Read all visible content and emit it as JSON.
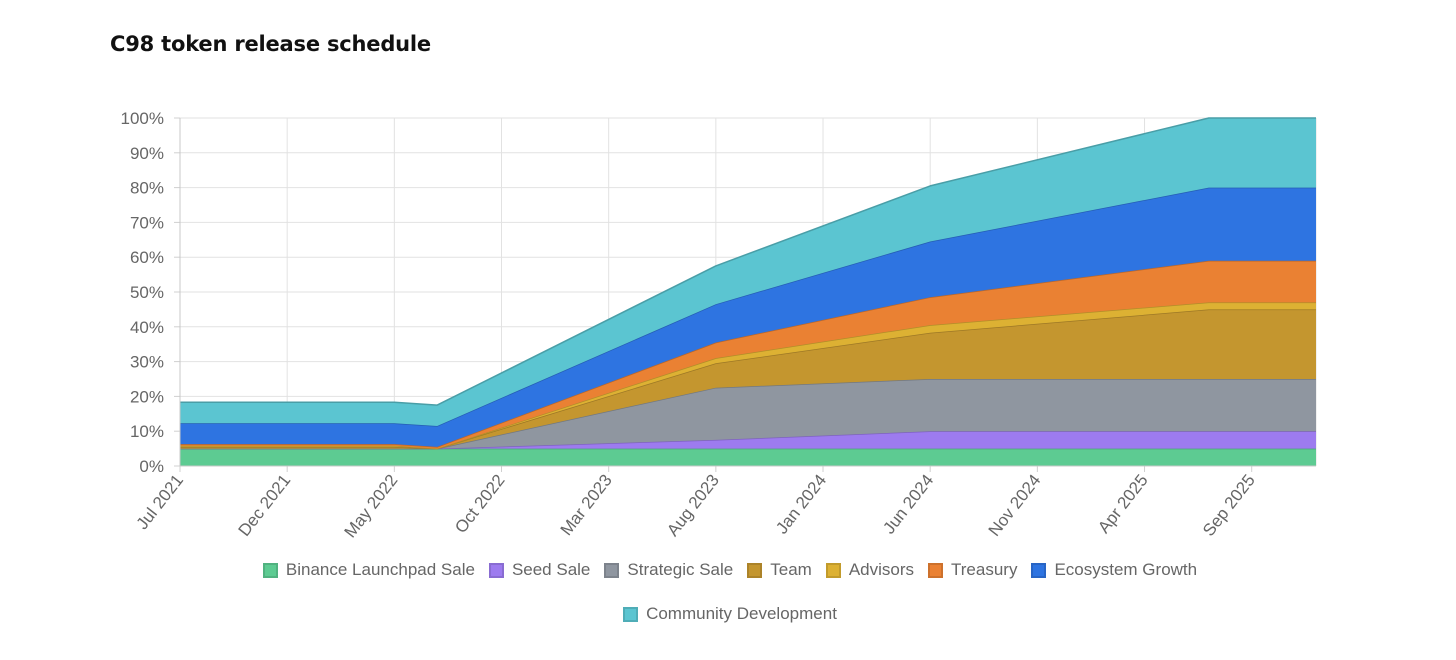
{
  "page_title": "C98 token release schedule",
  "chart_data": {
    "type": "area",
    "stacked": true,
    "title": "C98 token release schedule",
    "ylim": [
      0,
      100
    ],
    "yticks": [
      "0%",
      "10%",
      "20%",
      "30%",
      "40%",
      "50%",
      "60%",
      "70%",
      "80%",
      "90%",
      "100%"
    ],
    "x_range": [
      0,
      53
    ],
    "xticks": [
      {
        "label": "Jul 2021",
        "x": 0
      },
      {
        "label": "Dec 2021",
        "x": 5
      },
      {
        "label": "May 2022",
        "x": 10
      },
      {
        "label": "Oct 2022",
        "x": 15
      },
      {
        "label": "Mar 2023",
        "x": 20
      },
      {
        "label": "Aug 2023",
        "x": 25
      },
      {
        "label": "Jan 2024",
        "x": 30
      },
      {
        "label": "Jun 2024",
        "x": 35
      },
      {
        "label": "Nov 2024",
        "x": 40
      },
      {
        "label": "Apr 2025",
        "x": 45
      },
      {
        "label": "Sep 2025",
        "x": 50
      }
    ],
    "x": [
      0,
      10,
      12,
      25,
      35,
      48,
      53
    ],
    "series": [
      {
        "name": "Binance Launchpad Sale",
        "color": "#5dcb92",
        "values": [
          5,
          5,
          5,
          5,
          5,
          5,
          5
        ]
      },
      {
        "name": "Seed Sale",
        "color": "#9d7bef",
        "values": [
          0,
          0,
          0,
          2.5,
          5,
          5,
          5
        ]
      },
      {
        "name": "Strategic Sale",
        "color": "#8f96a0",
        "values": [
          0,
          0,
          0,
          15,
          15,
          15,
          15
        ]
      },
      {
        "name": "Team",
        "color": "#c4962f",
        "values": [
          0.5,
          0.5,
          0,
          7,
          13.3,
          20,
          20
        ]
      },
      {
        "name": "Advisors",
        "color": "#ddb133",
        "values": [
          0.3,
          0.3,
          0,
          1.5,
          2.2,
          2,
          2
        ]
      },
      {
        "name": "Treasury",
        "color": "#ea8133",
        "values": [
          0.5,
          0.5,
          0.5,
          4.5,
          8,
          12,
          12
        ]
      },
      {
        "name": "Ecosystem Growth",
        "color": "#2e74e1",
        "values": [
          6,
          6,
          6,
          11,
          16,
          21,
          21
        ]
      },
      {
        "name": "Community Development",
        "color": "#5bc5d1",
        "values": [
          6,
          6,
          6,
          11,
          16,
          20,
          20
        ]
      }
    ]
  }
}
